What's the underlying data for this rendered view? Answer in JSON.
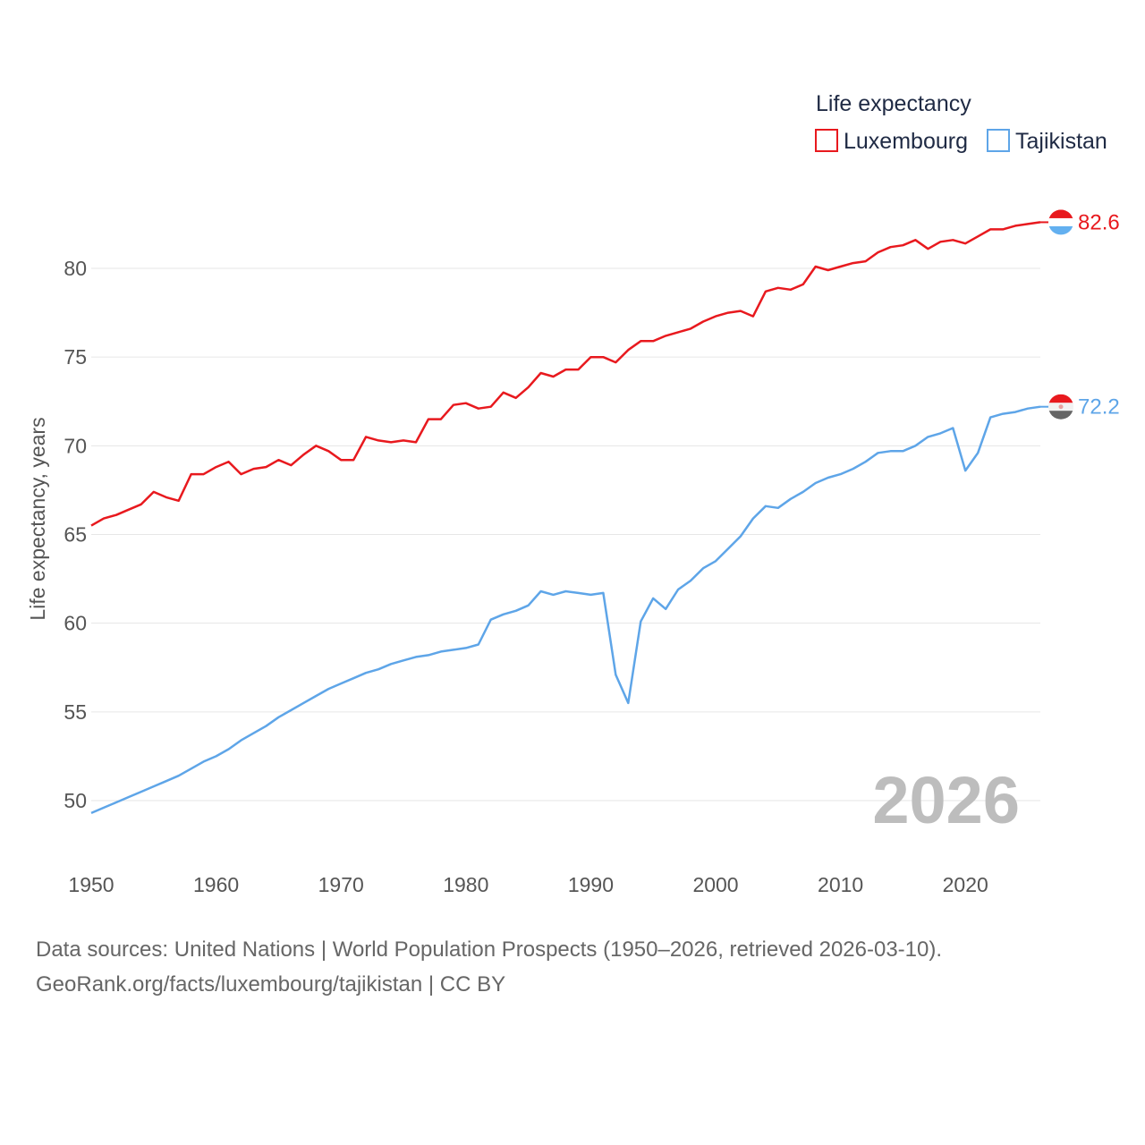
{
  "chart_data": {
    "type": "line",
    "title": "",
    "legend_title": "Life expectancy",
    "ylabel": "Life expectancy, years",
    "xlabel": "",
    "xlim": [
      1950,
      2026
    ],
    "ylim": [
      47.5,
      84
    ],
    "x_ticks": [
      1950,
      1960,
      1970,
      1980,
      1990,
      2000,
      2010,
      2020
    ],
    "y_ticks": [
      50,
      55,
      60,
      65,
      70,
      75,
      80
    ],
    "grid": true,
    "legend_position": "top-right",
    "year_label": "2026",
    "x": [
      1950,
      1951,
      1952,
      1953,
      1954,
      1955,
      1956,
      1957,
      1958,
      1959,
      1960,
      1961,
      1962,
      1963,
      1964,
      1965,
      1966,
      1967,
      1968,
      1969,
      1970,
      1971,
      1972,
      1973,
      1974,
      1975,
      1976,
      1977,
      1978,
      1979,
      1980,
      1981,
      1982,
      1983,
      1984,
      1985,
      1986,
      1987,
      1988,
      1989,
      1990,
      1991,
      1992,
      1993,
      1994,
      1995,
      1996,
      1997,
      1998,
      1999,
      2000,
      2001,
      2002,
      2003,
      2004,
      2005,
      2006,
      2007,
      2008,
      2009,
      2010,
      2011,
      2012,
      2013,
      2014,
      2015,
      2016,
      2017,
      2018,
      2019,
      2020,
      2021,
      2022,
      2023,
      2024,
      2025,
      2026
    ],
    "series": [
      {
        "name": "Luxembourg",
        "color": "#e8191e",
        "end_label": "82.6",
        "values": [
          65.5,
          65.9,
          66.1,
          66.4,
          66.7,
          67.4,
          67.1,
          66.9,
          68.4,
          68.4,
          68.8,
          69.1,
          68.4,
          68.7,
          68.8,
          69.2,
          68.9,
          69.5,
          70.0,
          69.7,
          69.2,
          69.2,
          70.5,
          70.3,
          70.2,
          70.3,
          70.2,
          71.5,
          71.5,
          72.3,
          72.4,
          72.1,
          72.2,
          73.0,
          72.7,
          73.3,
          74.1,
          73.9,
          74.3,
          74.3,
          75.0,
          75.0,
          74.7,
          75.4,
          75.9,
          75.9,
          76.2,
          76.4,
          76.6,
          77.0,
          77.3,
          77.5,
          77.6,
          77.3,
          78.7,
          78.9,
          78.8,
          79.1,
          80.1,
          79.9,
          80.1,
          80.3,
          80.4,
          80.9,
          81.2,
          81.3,
          81.6,
          81.1,
          81.5,
          81.6,
          81.4,
          81.8,
          82.2,
          82.2,
          82.4,
          82.5,
          82.6
        ]
      },
      {
        "name": "Tajikistan",
        "color": "#5ea5e8",
        "end_label": "72.2",
        "values": [
          49.3,
          49.6,
          49.9,
          50.2,
          50.5,
          50.8,
          51.1,
          51.4,
          51.8,
          52.2,
          52.5,
          52.9,
          53.4,
          53.8,
          54.2,
          54.7,
          55.1,
          55.5,
          55.9,
          56.3,
          56.6,
          56.9,
          57.2,
          57.4,
          57.7,
          57.9,
          58.1,
          58.2,
          58.4,
          58.5,
          58.6,
          58.8,
          60.2,
          60.5,
          60.7,
          61.0,
          61.8,
          61.6,
          61.8,
          61.7,
          61.6,
          61.7,
          57.1,
          55.5,
          60.1,
          61.4,
          60.8,
          61.9,
          62.4,
          63.1,
          63.5,
          64.2,
          64.9,
          65.9,
          66.6,
          66.5,
          67.0,
          67.4,
          67.9,
          68.2,
          68.4,
          68.7,
          69.1,
          69.6,
          69.7,
          69.7,
          70.0,
          70.5,
          70.7,
          71.0,
          68.6,
          69.6,
          71.6,
          71.8,
          71.9,
          72.1,
          72.2
        ]
      }
    ]
  },
  "footer": {
    "source_line_1": "Data sources: United Nations | World Population Prospects (1950–2026, retrieved 2026-03-10).",
    "source_line_2": "GeoRank.org/facts/luxembourg/tajikistan | CC BY"
  }
}
